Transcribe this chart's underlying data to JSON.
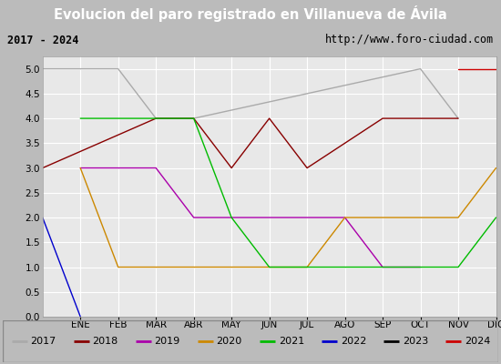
{
  "title": "Evolucion del paro registrado en Villanueva de Ávila",
  "subtitle_left": "2017 - 2024",
  "subtitle_right": "http://www.foro-ciudad.com",
  "months": [
    "ENE",
    "FEB",
    "MAR",
    "ABR",
    "MAY",
    "JUN",
    "JUL",
    "AGO",
    "SEP",
    "OCT",
    "NOV",
    "DIC"
  ],
  "yticks": [
    0.0,
    0.5,
    1.0,
    1.5,
    2.0,
    2.5,
    3.0,
    3.5,
    4.0,
    4.5,
    5.0
  ],
  "title_bg_color": "#3d7ebf",
  "title_text_color": "#ffffff",
  "header_bg_color": "#d4d4d4",
  "plot_bg_color": "#e8e8e8",
  "legend_bg_color": "#d4d4d4",
  "series": {
    "2017": {
      "color": "#aaaaaa",
      "x": [
        0,
        1,
        2,
        3,
        4,
        10,
        11
      ],
      "y": [
        5,
        5,
        5,
        4,
        4,
        5,
        4
      ]
    },
    "2018": {
      "color": "#880000",
      "x": [
        0,
        3,
        4,
        5,
        6,
        7,
        9,
        10,
        11
      ],
      "y": [
        3,
        4,
        4,
        3,
        4,
        3,
        4,
        4,
        4
      ]
    },
    "2019": {
      "color": "#aa00aa",
      "x": [
        1,
        2,
        3,
        4,
        5,
        6,
        7,
        8,
        9,
        10
      ],
      "y": [
        3,
        3,
        3,
        2,
        2,
        2,
        2,
        2,
        1,
        1
      ]
    },
    "2020": {
      "color": "#cc8800",
      "x": [
        1,
        2,
        3,
        4,
        5,
        6,
        7,
        8,
        9,
        11,
        12
      ],
      "y": [
        3,
        1,
        1,
        1,
        1,
        1,
        1,
        2,
        2,
        2,
        3
      ]
    },
    "2021": {
      "color": "#00bb00",
      "x": [
        1,
        2,
        3,
        4,
        5,
        6,
        7,
        8,
        9,
        11,
        12
      ],
      "y": [
        4,
        4,
        4,
        4,
        2,
        1,
        1,
        1,
        1,
        1,
        2
      ]
    },
    "2022": {
      "color": "#0000cc",
      "x": [
        0,
        1
      ],
      "y": [
        2,
        0
      ]
    },
    "2023": {
      "color": "#000000",
      "x": [],
      "y": []
    },
    "2024": {
      "color": "#cc0000",
      "x": [
        11,
        12
      ],
      "y": [
        5,
        5
      ]
    }
  },
  "years_order": [
    "2017",
    "2018",
    "2019",
    "2020",
    "2021",
    "2022",
    "2023",
    "2024"
  ]
}
